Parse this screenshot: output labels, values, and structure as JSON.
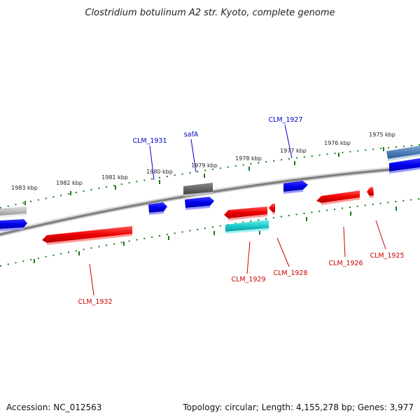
{
  "title": "Clostridium botulinum A2 str. Kyoto, complete genome",
  "footer": {
    "accession": "Accession: NC_012563",
    "summary": "Topology: circular; Length: 4,155,278 bp; Genes: 3,977"
  },
  "scale_labels": [
    "1983 kbp",
    "1982 kbp",
    "1981 kbp",
    "1980 kbp",
    "1979 kbp",
    "1978 kbp",
    "1977 kbp",
    "1976 kbp",
    "1975 kbp"
  ],
  "gene_labels": {
    "forward": [
      "CLM_1931",
      "safA",
      "CLM_1927"
    ],
    "reverse": [
      "CLM_1932",
      "CLM_1929",
      "CLM_1928",
      "CLM_1926",
      "CLM_1925"
    ]
  },
  "colors": {
    "forward_gene": "#0000ee",
    "reverse_gene": "#ee0000",
    "rna_gene": "#00c8c8",
    "pseudo_gene": "#606060",
    "backbone": "#808080",
    "tick": "#1a7a1a"
  }
}
